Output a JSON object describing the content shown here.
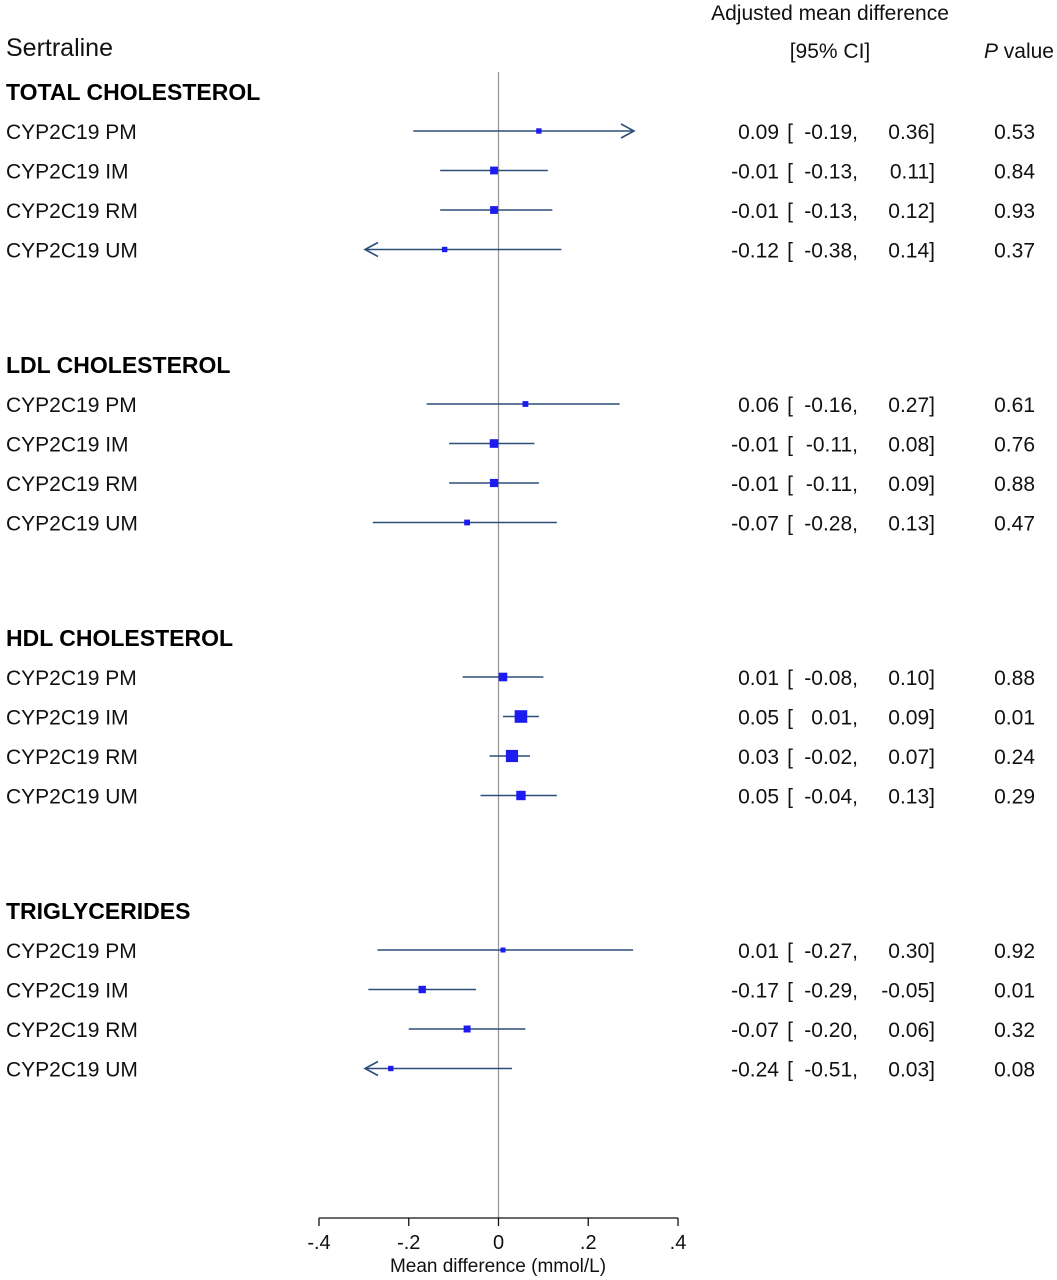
{
  "chart_data": {
    "type": "forest",
    "title": "Sertraline",
    "header": {
      "estimate_line1": "Adjusted mean difference",
      "estimate_line2": "[95% CI]",
      "p_italic": "P",
      "p_rest": " value"
    },
    "xlabel": "Mean difference (mmol/L)",
    "xlim": [
      -0.4,
      0.4
    ],
    "xticks": [
      -0.4,
      -0.2,
      0,
      0.2,
      0.4
    ],
    "xtick_labels": [
      "-.4",
      "-.2",
      "0",
      ".2",
      ".4"
    ],
    "reference_line": 0,
    "colors": {
      "marker": "#1c1cf0",
      "ci_line": "#2b4f7a",
      "reference": "#999999"
    },
    "groups": [
      {
        "name": "TOTAL CHOLESTEROL",
        "rows": [
          {
            "label": "CYP2C19 PM",
            "est": 0.09,
            "lo": -0.19,
            "hi": 0.36,
            "est_txt": "0.09",
            "lo_txt": "-0.19,",
            "hi_txt": "0.36]",
            "p": "0.53",
            "weight": 0.3
          },
          {
            "label": "CYP2C19 IM",
            "est": -0.01,
            "lo": -0.13,
            "hi": 0.11,
            "est_txt": "-0.01",
            "lo_txt": "-0.13,",
            "hi_txt": "0.11]",
            "p": "0.84",
            "weight": 0.6
          },
          {
            "label": "CYP2C19 RM",
            "est": -0.01,
            "lo": -0.13,
            "hi": 0.12,
            "est_txt": "-0.01",
            "lo_txt": "-0.13,",
            "hi_txt": "0.12]",
            "p": "0.93",
            "weight": 0.6
          },
          {
            "label": "CYP2C19 UM",
            "est": -0.12,
            "lo": -0.38,
            "hi": 0.14,
            "est_txt": "-0.12",
            "lo_txt": "-0.38,",
            "hi_txt": "0.14]",
            "p": "0.37",
            "weight": 0.3
          }
        ]
      },
      {
        "name": "LDL CHOLESTEROL",
        "rows": [
          {
            "label": "CYP2C19 PM",
            "est": 0.06,
            "lo": -0.16,
            "hi": 0.27,
            "est_txt": "0.06",
            "lo_txt": "-0.16,",
            "hi_txt": "0.27]",
            "p": "0.61",
            "weight": 0.35
          },
          {
            "label": "CYP2C19 IM",
            "est": -0.01,
            "lo": -0.11,
            "hi": 0.08,
            "est_txt": "-0.01",
            "lo_txt": "-0.11,",
            "hi_txt": "0.08]",
            "p": "0.76",
            "weight": 0.7
          },
          {
            "label": "CYP2C19 RM",
            "est": -0.01,
            "lo": -0.11,
            "hi": 0.09,
            "est_txt": "-0.01",
            "lo_txt": "-0.11,",
            "hi_txt": "0.09]",
            "p": "0.88",
            "weight": 0.65
          },
          {
            "label": "CYP2C19 UM",
            "est": -0.07,
            "lo": -0.28,
            "hi": 0.13,
            "est_txt": "-0.07",
            "lo_txt": "-0.28,",
            "hi_txt": "0.13]",
            "p": "0.47",
            "weight": 0.35
          }
        ]
      },
      {
        "name": "HDL CHOLESTEROL",
        "rows": [
          {
            "label": "CYP2C19 PM",
            "est": 0.01,
            "lo": -0.08,
            "hi": 0.1,
            "est_txt": "0.01",
            "lo_txt": "-0.08,",
            "hi_txt": "0.10]",
            "p": "0.88",
            "weight": 0.7
          },
          {
            "label": "CYP2C19 IM",
            "est": 0.05,
            "lo": 0.01,
            "hi": 0.09,
            "est_txt": "0.05",
            "lo_txt": "0.01,",
            "hi_txt": "0.09]",
            "p": "0.01",
            "weight": 1.2
          },
          {
            "label": "CYP2C19 RM",
            "est": 0.03,
            "lo": -0.02,
            "hi": 0.07,
            "est_txt": "0.03",
            "lo_txt": "-0.02,",
            "hi_txt": "0.07]",
            "p": "0.24",
            "weight": 1.15
          },
          {
            "label": "CYP2C19 UM",
            "est": 0.05,
            "lo": -0.04,
            "hi": 0.13,
            "est_txt": "0.05",
            "lo_txt": "-0.04,",
            "hi_txt": "0.13]",
            "p": "0.29",
            "weight": 0.8
          }
        ]
      },
      {
        "name": "TRIGLYCERIDES",
        "rows": [
          {
            "label": "CYP2C19 PM",
            "est": 0.01,
            "lo": -0.27,
            "hi": 0.3,
            "est_txt": "0.01",
            "lo_txt": "-0.27,",
            "hi_txt": "0.30]",
            "p": "0.92",
            "weight": 0.25
          },
          {
            "label": "CYP2C19 IM",
            "est": -0.17,
            "lo": -0.29,
            "hi": -0.05,
            "est_txt": "-0.17",
            "lo_txt": "-0.29,",
            "hi_txt": "-0.05]",
            "p": "0.01",
            "weight": 0.55
          },
          {
            "label": "CYP2C19 RM",
            "est": -0.07,
            "lo": -0.2,
            "hi": 0.06,
            "est_txt": "-0.07",
            "lo_txt": "-0.20,",
            "hi_txt": "0.06]",
            "p": "0.32",
            "weight": 0.5
          },
          {
            "label": "CYP2C19 UM",
            "est": -0.24,
            "lo": -0.51,
            "hi": 0.03,
            "est_txt": "-0.24",
            "lo_txt": "-0.51,",
            "hi_txt": "0.03]",
            "p": "0.08",
            "weight": 0.3
          }
        ]
      }
    ]
  }
}
